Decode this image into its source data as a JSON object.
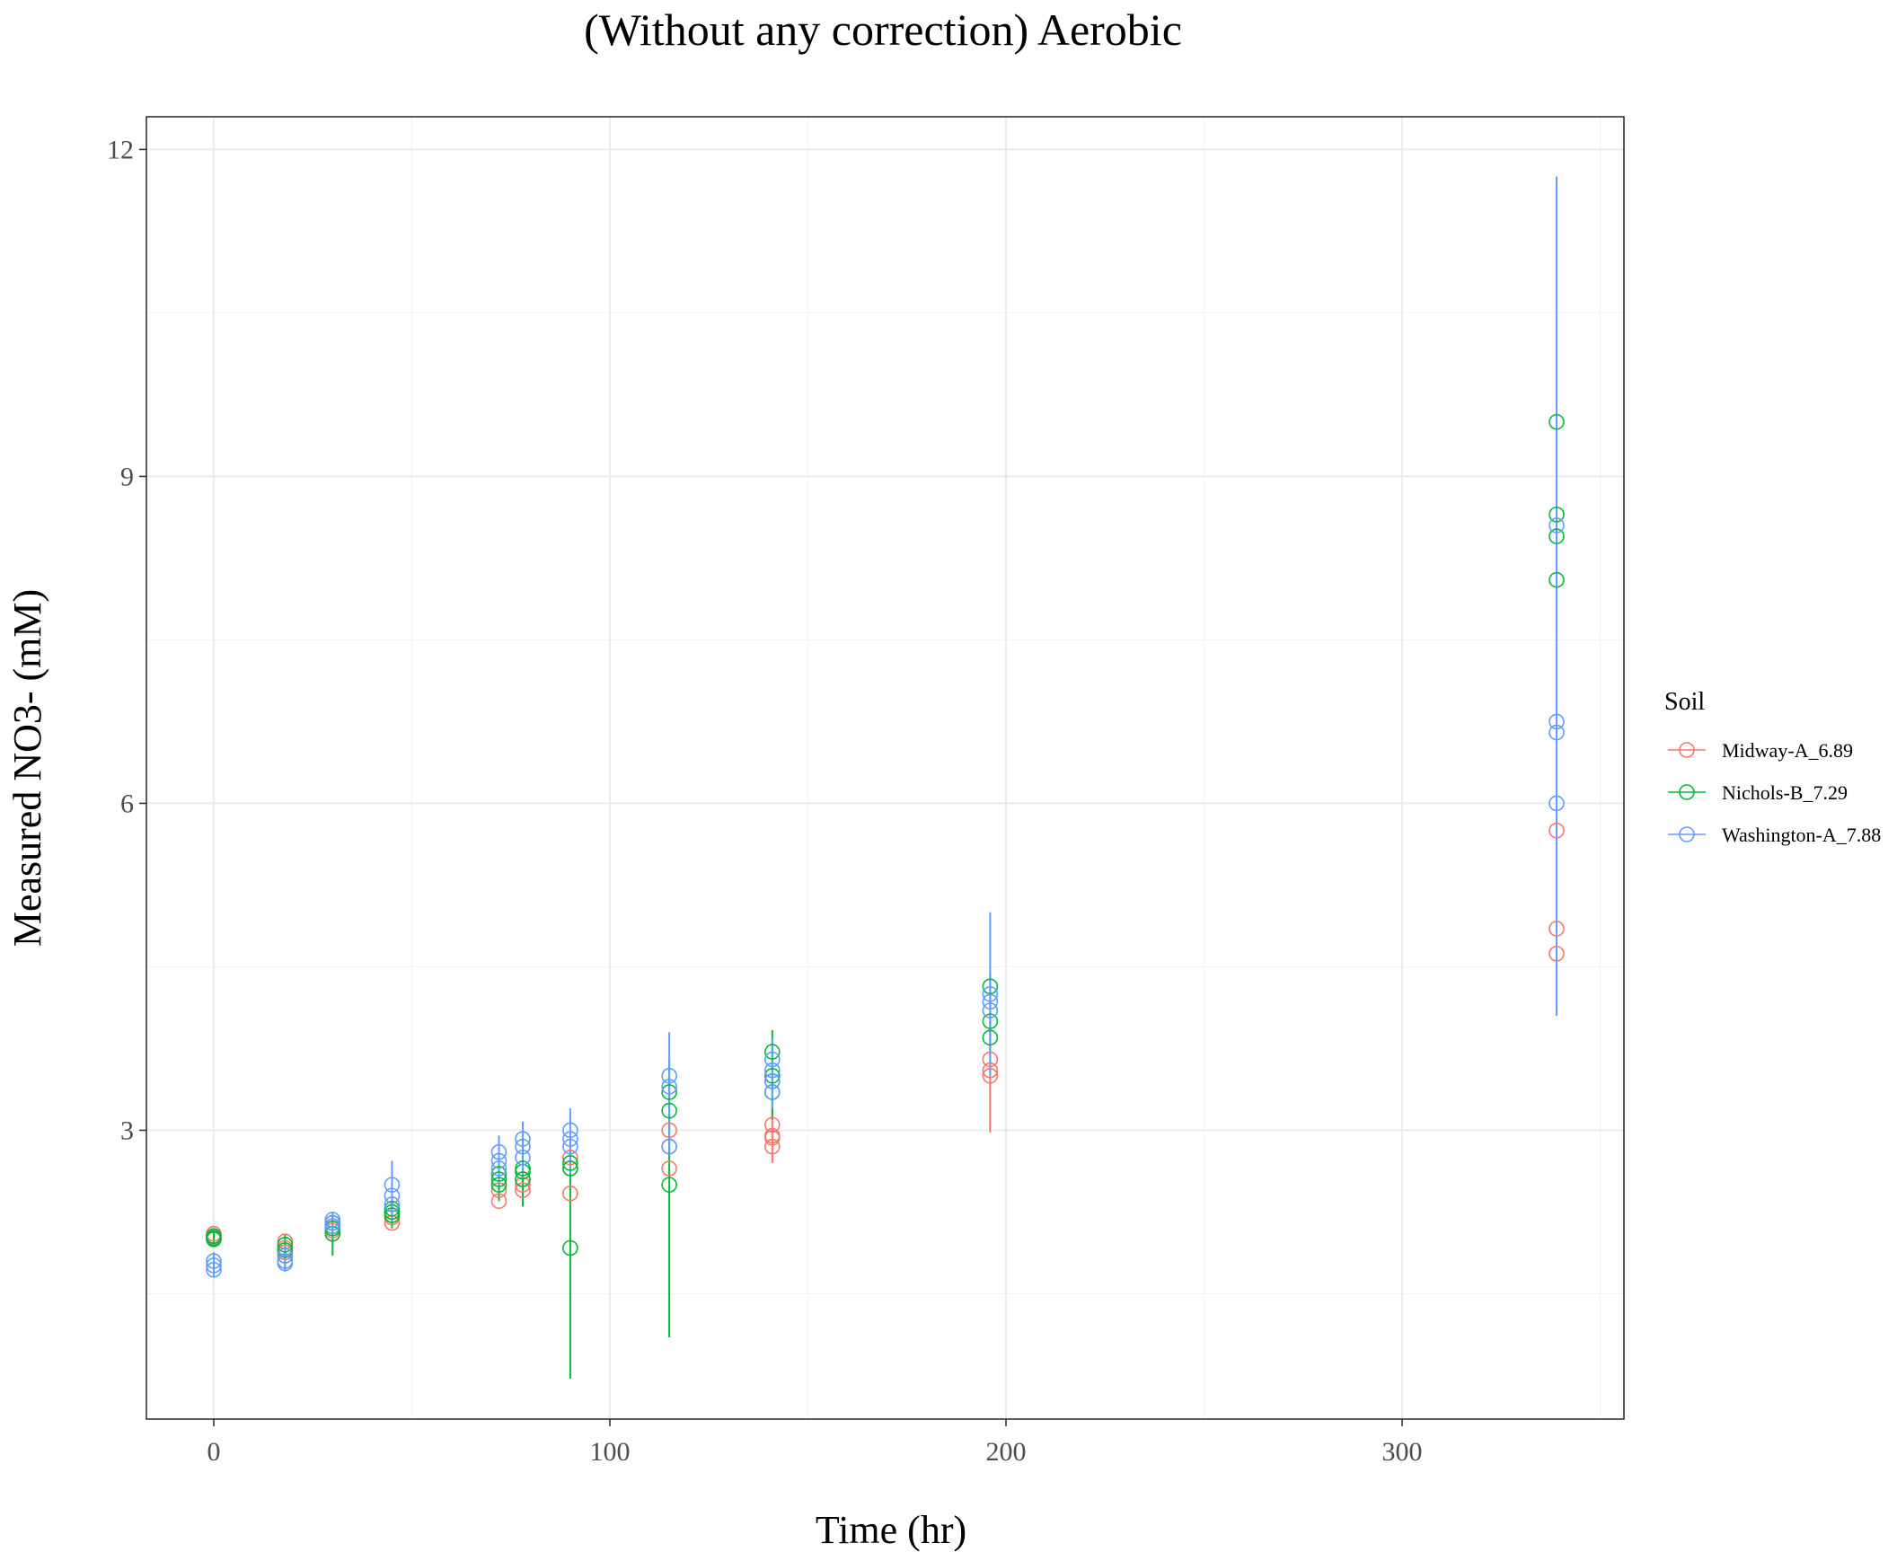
{
  "chart_data": {
    "type": "scatter",
    "title": "(Without any correction) Aerobic",
    "xlabel": "Time (hr)",
    "ylabel": "Measured NO3- (mM)",
    "xlim": [
      -17,
      356
    ],
    "ylim": [
      0.35,
      12.3
    ],
    "x_ticks": [
      0,
      100,
      200,
      300
    ],
    "x_tick_labels": [
      "0",
      "100",
      "200",
      "300"
    ],
    "y_ticks": [
      3,
      6,
      9,
      12
    ],
    "y_tick_labels": [
      "3",
      "6",
      "9",
      "12"
    ],
    "grid": true,
    "legend": {
      "title": "Soil",
      "position": "right"
    },
    "series": [
      {
        "name": "Midway-A_6.89",
        "color": "#F8766D",
        "points": [
          [
            0,
            2.05
          ],
          [
            0,
            2.02
          ],
          [
            0,
            2.0
          ],
          [
            18,
            1.98
          ],
          [
            18,
            1.92
          ],
          [
            18,
            1.88
          ],
          [
            30,
            2.12
          ],
          [
            30,
            2.08
          ],
          [
            30,
            2.05
          ],
          [
            45,
            2.25
          ],
          [
            45,
            2.2
          ],
          [
            45,
            2.15
          ],
          [
            72,
            2.45
          ],
          [
            72,
            2.35
          ],
          [
            78,
            2.55
          ],
          [
            78,
            2.45
          ],
          [
            78,
            2.5
          ],
          [
            90,
            2.75
          ],
          [
            90,
            2.65
          ],
          [
            90,
            2.42
          ],
          [
            115,
            3.0
          ],
          [
            115,
            2.85
          ],
          [
            115,
            2.65
          ],
          [
            141,
            3.05
          ],
          [
            141,
            2.95
          ],
          [
            141,
            2.93
          ],
          [
            141,
            2.85
          ],
          [
            196,
            3.65
          ],
          [
            196,
            3.55
          ],
          [
            196,
            3.5
          ],
          [
            339,
            5.75
          ],
          [
            339,
            4.85
          ],
          [
            339,
            4.62
          ]
        ],
        "error_bars": [
          [
            196,
            2.98,
            4.0
          ],
          [
            339,
            4.05,
            5.9
          ],
          [
            141,
            2.7,
            3.2
          ]
        ]
      },
      {
        "name": "Nichols-B_7.29",
        "color": "#00BA38",
        "points": [
          [
            0,
            2.03
          ],
          [
            0,
            2.0
          ],
          [
            0,
            2.01
          ],
          [
            18,
            1.95
          ],
          [
            18,
            1.9
          ],
          [
            18,
            1.85
          ],
          [
            30,
            2.05
          ],
          [
            30,
            2.1
          ],
          [
            30,
            2.15
          ],
          [
            45,
            2.25
          ],
          [
            45,
            2.22
          ],
          [
            45,
            2.28
          ],
          [
            72,
            2.6
          ],
          [
            72,
            2.55
          ],
          [
            72,
            2.5
          ],
          [
            78,
            2.55
          ],
          [
            78,
            2.65
          ],
          [
            78,
            2.62
          ],
          [
            90,
            2.65
          ],
          [
            90,
            2.7
          ],
          [
            90,
            1.92
          ],
          [
            115,
            3.35
          ],
          [
            115,
            3.18
          ],
          [
            115,
            2.5
          ],
          [
            141,
            3.72
          ],
          [
            141,
            3.5
          ],
          [
            141,
            3.45
          ],
          [
            141,
            3.35
          ],
          [
            196,
            4.32
          ],
          [
            196,
            4.0
          ],
          [
            196,
            3.85
          ],
          [
            339,
            9.5
          ],
          [
            339,
            8.65
          ],
          [
            339,
            8.45
          ],
          [
            339,
            8.05
          ]
        ],
        "error_bars": [
          [
            0,
            1.97,
            2.07
          ],
          [
            18,
            1.72,
            2.05
          ],
          [
            30,
            1.85,
            2.22
          ],
          [
            45,
            2.1,
            2.35
          ],
          [
            72,
            2.35,
            2.75
          ],
          [
            78,
            2.3,
            2.8
          ],
          [
            90,
            0.72,
            2.95
          ],
          [
            115,
            1.1,
            3.65
          ],
          [
            141,
            3.1,
            3.92
          ],
          [
            196,
            3.7,
            4.45
          ]
        ]
      },
      {
        "name": "Washington-A_7.88",
        "color": "#619CFF",
        "points": [
          [
            0,
            1.8
          ],
          [
            0,
            1.76
          ],
          [
            0,
            1.72
          ],
          [
            18,
            1.85
          ],
          [
            18,
            1.8
          ],
          [
            18,
            1.78
          ],
          [
            30,
            2.18
          ],
          [
            30,
            2.15
          ],
          [
            30,
            2.12
          ],
          [
            45,
            2.5
          ],
          [
            45,
            2.4
          ],
          [
            45,
            2.32
          ],
          [
            72,
            2.8
          ],
          [
            72,
            2.72
          ],
          [
            72,
            2.65
          ],
          [
            78,
            2.92
          ],
          [
            78,
            2.85
          ],
          [
            78,
            2.75
          ],
          [
            90,
            3.0
          ],
          [
            90,
            2.92
          ],
          [
            90,
            2.85
          ],
          [
            115,
            3.5
          ],
          [
            115,
            3.4
          ],
          [
            115,
            2.85
          ],
          [
            141,
            3.65
          ],
          [
            141,
            3.55
          ],
          [
            141,
            3.45
          ],
          [
            141,
            3.35
          ],
          [
            196,
            4.25
          ],
          [
            196,
            4.18
          ],
          [
            196,
            4.1
          ],
          [
            339,
            8.55
          ],
          [
            339,
            6.75
          ],
          [
            339,
            6.65
          ],
          [
            339,
            6.0
          ]
        ],
        "error_bars": [
          [
            0,
            1.65,
            1.88
          ],
          [
            18,
            1.7,
            1.95
          ],
          [
            30,
            2.05,
            2.25
          ],
          [
            45,
            2.15,
            2.72
          ],
          [
            72,
            2.5,
            2.95
          ],
          [
            78,
            2.55,
            3.08
          ],
          [
            90,
            2.6,
            3.2
          ],
          [
            115,
            2.8,
            3.9
          ],
          [
            141,
            3.2,
            3.85
          ],
          [
            196,
            3.5,
            5.0
          ],
          [
            339,
            4.05,
            11.75
          ]
        ]
      }
    ]
  }
}
